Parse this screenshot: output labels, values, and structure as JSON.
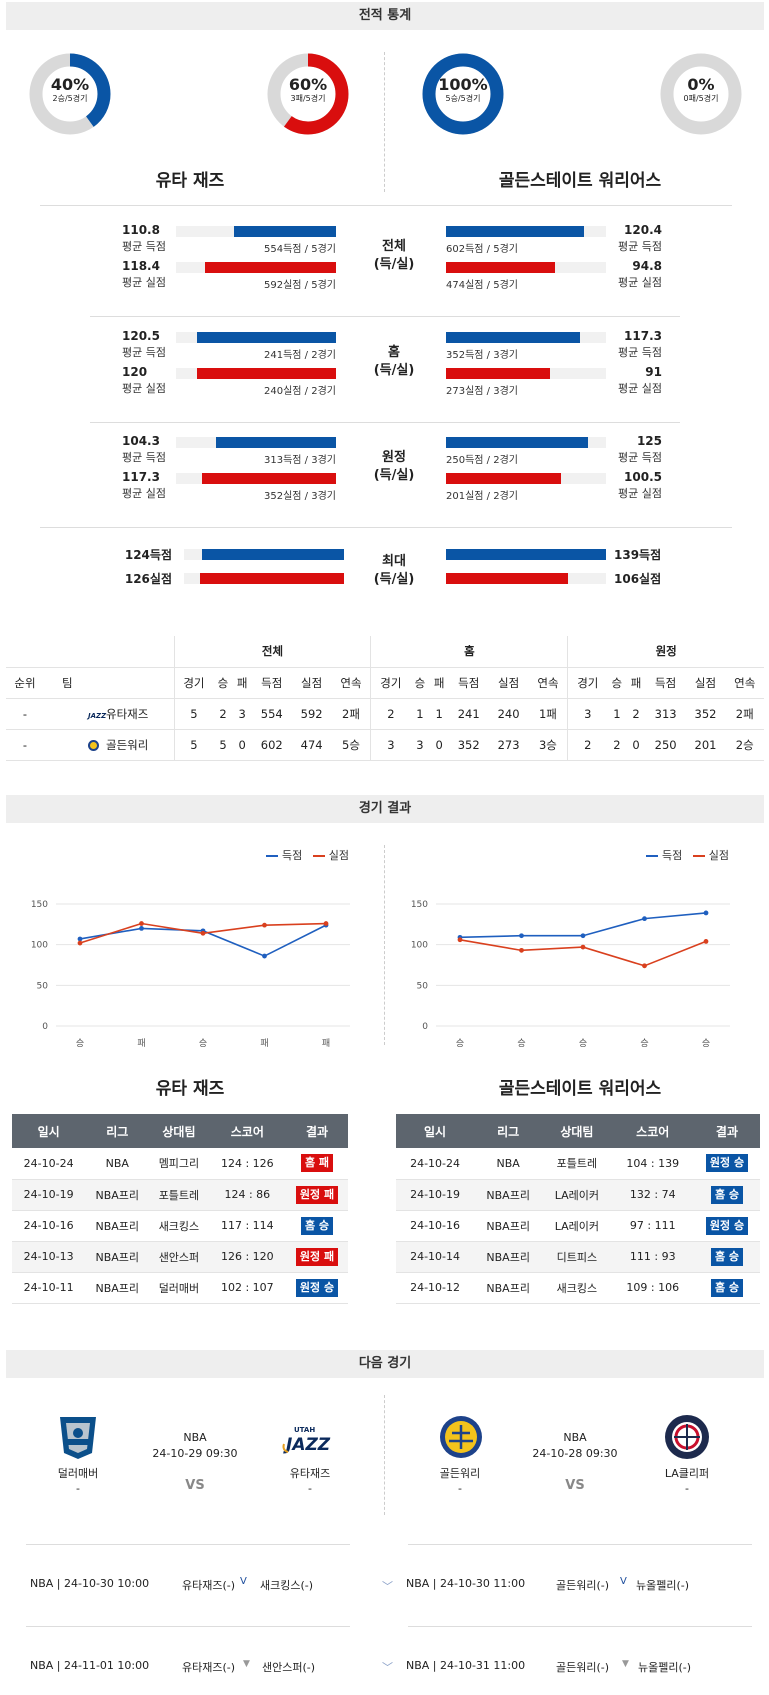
{
  "sections": {
    "stats": "전적 통계",
    "results": "경기 결과",
    "next": "다음 경기"
  },
  "colors": {
    "blue": "#0a55a5",
    "red": "#d90e0e",
    "grey": "#d9d9d9"
  },
  "donuts": [
    {
      "pct": "40%",
      "sub": "2승/5경기",
      "color": "#0a55a5",
      "fraction": 0.4
    },
    {
      "pct": "60%",
      "sub": "3패/5경기",
      "color": "#d90e0e",
      "fraction": 0.6
    },
    {
      "pct": "100%",
      "sub": "5승/5경기",
      "color": "#0a55a5",
      "fraction": 1.0
    },
    {
      "pct": "0%",
      "sub": "0패/5경기",
      "color": "#d90e0e",
      "fraction": 0.0
    }
  ],
  "teams": {
    "left": "유타 재즈",
    "right": "골든스테이트 워리어스"
  },
  "stat_groups": [
    {
      "cat1": "전체",
      "cat2": "(득/실)",
      "left": [
        {
          "val": "110.8",
          "lbl": "평균 득점",
          "detail": "554득점 / 5경기",
          "ratio": 0.64
        },
        {
          "val": "118.4",
          "lbl": "평균 실점",
          "detail": "592실점 / 5경기",
          "ratio": 0.82
        }
      ],
      "right": [
        {
          "val": "120.4",
          "lbl": "평균 득점",
          "detail": "602득점 / 5경기",
          "ratio": 0.86
        },
        {
          "val": "94.8",
          "lbl": "평균 실점",
          "detail": "474실점 / 5경기",
          "ratio": 0.68
        }
      ]
    },
    {
      "cat1": "홈",
      "cat2": "(득/실)",
      "left": [
        {
          "val": "120.5",
          "lbl": "평균 득점",
          "detail": "241득점 / 2경기",
          "ratio": 0.87
        },
        {
          "val": "120",
          "lbl": "평균 실점",
          "detail": "240실점 / 2경기",
          "ratio": 0.87
        }
      ],
      "right": [
        {
          "val": "117.3",
          "lbl": "평균 득점",
          "detail": "352득점 / 3경기",
          "ratio": 0.84
        },
        {
          "val": "91",
          "lbl": "평균 실점",
          "detail": "273실점 / 3경기",
          "ratio": 0.65
        }
      ]
    },
    {
      "cat1": "원정",
      "cat2": "(득/실)",
      "left": [
        {
          "val": "104.3",
          "lbl": "평균 득점",
          "detail": "313득점 / 3경기",
          "ratio": 0.75
        },
        {
          "val": "117.3",
          "lbl": "평균 실점",
          "detail": "352실점 / 3경기",
          "ratio": 0.84
        }
      ],
      "right": [
        {
          "val": "125",
          "lbl": "평균 득점",
          "detail": "250득점 / 2경기",
          "ratio": 0.89
        },
        {
          "val": "100.5",
          "lbl": "평균 실점",
          "detail": "201실점 / 2경기",
          "ratio": 0.72
        }
      ]
    }
  ],
  "max_group": {
    "cat1": "최대",
    "cat2": "(득/실)",
    "left": [
      {
        "val": "124득점",
        "ratio": 0.89
      },
      {
        "val": "126실점",
        "ratio": 0.9
      }
    ],
    "right": [
      {
        "val": "139득점",
        "ratio": 1.0
      },
      {
        "val": "106실점",
        "ratio": 0.76
      }
    ]
  },
  "standings": {
    "groups": [
      "전체",
      "홈",
      "원정"
    ],
    "head_rank": "순위",
    "head_team": "팀",
    "cols": [
      "경기",
      "승",
      "패",
      "득점",
      "실점",
      "연속"
    ],
    "rows": [
      {
        "rank": "-",
        "team": "유타재즈",
        "vals": [
          "5",
          "2",
          "3",
          "554",
          "592",
          "2패",
          "2",
          "1",
          "1",
          "241",
          "240",
          "1패",
          "3",
          "1",
          "2",
          "313",
          "352",
          "2패"
        ]
      },
      {
        "rank": "-",
        "team": "골든워리",
        "vals": [
          "5",
          "5",
          "0",
          "602",
          "474",
          "5승",
          "3",
          "3",
          "0",
          "352",
          "273",
          "3승",
          "2",
          "2",
          "0",
          "250",
          "201",
          "2승"
        ]
      }
    ]
  },
  "legend": {
    "scored": "득점",
    "conceded": "실점"
  },
  "chart_data": [
    {
      "type": "line",
      "x": [
        "승",
        "패",
        "승",
        "패",
        "패"
      ],
      "ylim": [
        0,
        150
      ],
      "yticks": [
        0,
        50,
        100,
        150
      ],
      "series": [
        {
          "name": "득점",
          "values": [
            107,
            120,
            117,
            86,
            124
          ]
        },
        {
          "name": "실점",
          "values": [
            102,
            126,
            114,
            124,
            126
          ]
        }
      ]
    },
    {
      "type": "line",
      "x": [
        "승",
        "승",
        "승",
        "승",
        "승"
      ],
      "ylim": [
        0,
        150
      ],
      "yticks": [
        0,
        50,
        100,
        150
      ],
      "series": [
        {
          "name": "득점",
          "values": [
            109,
            111,
            111,
            132,
            139
          ]
        },
        {
          "name": "실점",
          "values": [
            106,
            93,
            97,
            74,
            104
          ]
        }
      ]
    }
  ],
  "results": {
    "headers": [
      "일시",
      "리그",
      "상대팀",
      "스코어",
      "결과"
    ],
    "left": [
      {
        "date": "24-10-24",
        "league": "NBA",
        "opp": "멤피그리",
        "score": "124 : 126",
        "result": "홈 패",
        "type": "r"
      },
      {
        "date": "24-10-19",
        "league": "NBA프리",
        "opp": "포틀트레",
        "score": "124 : 86",
        "result": "원정 패",
        "type": "r"
      },
      {
        "date": "24-10-16",
        "league": "NBA프리",
        "opp": "새크킹스",
        "score": "117 : 114",
        "result": "홈 승",
        "type": "b"
      },
      {
        "date": "24-10-13",
        "league": "NBA프리",
        "opp": "샌안스퍼",
        "score": "126 : 120",
        "result": "원정 패",
        "type": "r"
      },
      {
        "date": "24-10-11",
        "league": "NBA프리",
        "opp": "덜러매버",
        "score": "102 : 107",
        "result": "원정 승",
        "type": "b"
      }
    ],
    "right": [
      {
        "date": "24-10-24",
        "league": "NBA",
        "opp": "포틀트레",
        "score": "104 : 139",
        "result": "원정 승",
        "type": "b"
      },
      {
        "date": "24-10-19",
        "league": "NBA프리",
        "opp": "LA레이커",
        "score": "132 : 74",
        "result": "홈 승",
        "type": "b"
      },
      {
        "date": "24-10-16",
        "league": "NBA프리",
        "opp": "LA레이커",
        "score": "97 : 111",
        "result": "원정 승",
        "type": "b"
      },
      {
        "date": "24-10-14",
        "league": "NBA프리",
        "opp": "디트피스",
        "score": "111 : 93",
        "result": "홈 승",
        "type": "b"
      },
      {
        "date": "24-10-12",
        "league": "NBA프리",
        "opp": "새크킹스",
        "score": "109 : 106",
        "result": "홈 승",
        "type": "b"
      }
    ]
  },
  "next": {
    "left": {
      "league": "NBA",
      "datetime": "24-10-29 09:30",
      "vs": "VS",
      "home": "덜러매버",
      "away": "유타재즈",
      "home_rank": "-",
      "away_rank": "-"
    },
    "right": {
      "league": "NBA",
      "datetime": "24-10-28 09:30",
      "vs": "VS",
      "home": "골든워리",
      "away": "LA클리퍼",
      "home_rank": "-",
      "away_rank": "-"
    }
  },
  "upcoming": [
    {
      "left": {
        "info": "NBA | 24-10-30 10:00",
        "team1": "유타재즈(-)",
        "team2": "새크킹스(-)"
      },
      "right": {
        "info": "NBA | 24-10-30 11:00",
        "team1": "골든워리(-)",
        "team2": "뉴올펠리(-)"
      }
    },
    {
      "left": {
        "info": "NBA | 24-11-01 10:00",
        "team1": "유타재즈(-)",
        "team2": "샌안스퍼(-)"
      },
      "right": {
        "info": "NBA | 24-10-31 11:00",
        "team1": "골든워리(-)",
        "team2": "뉴올펠리(-)"
      }
    }
  ]
}
